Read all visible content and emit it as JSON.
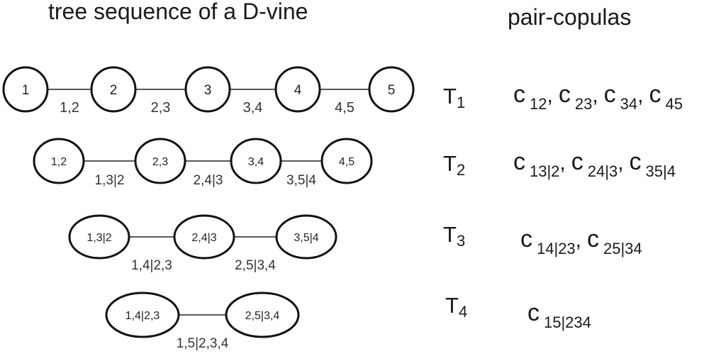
{
  "header": {
    "left_title": "tree sequence of a D-vine",
    "right_title": "pair-copulas"
  },
  "trees": [
    {
      "label_main": "T",
      "label_sub": "1",
      "nodes": [
        "1",
        "2",
        "3",
        "4",
        "5"
      ],
      "edges": [
        "1,2",
        "2,3",
        "3,4",
        "4,5"
      ]
    },
    {
      "label_main": "T",
      "label_sub": "2",
      "nodes": [
        "1,2",
        "2,3",
        "3,4",
        "4,5"
      ],
      "edges": [
        "1,3|2",
        "2,4|3",
        "3,5|4"
      ]
    },
    {
      "label_main": "T",
      "label_sub": "3",
      "nodes": [
        "1,3|2",
        "2,4|3",
        "3,5|4"
      ],
      "edges": [
        "1,4|2,3",
        "2,5|3,4"
      ]
    },
    {
      "label_main": "T",
      "label_sub": "4",
      "nodes": [
        "1,4|2,3",
        "2,5|3,4"
      ],
      "edges": [
        "1,5|2,3,4"
      ]
    }
  ],
  "copulas": [
    [
      {
        "c": "c",
        "idx": "12"
      },
      {
        "c": "c",
        "idx": "23"
      },
      {
        "c": "c",
        "idx": "34"
      },
      {
        "c": "c",
        "idx": "45"
      }
    ],
    [
      {
        "c": "c",
        "idx": "13|2"
      },
      {
        "c": "c",
        "idx": "24|3"
      },
      {
        "c": "c",
        "idx": "35|4"
      }
    ],
    [
      {
        "c": "c",
        "idx": "14|23"
      },
      {
        "c": "c",
        "idx": "25|34"
      }
    ],
    [
      {
        "c": "c",
        "idx": "15|234"
      }
    ]
  ],
  "separator": ","
}
